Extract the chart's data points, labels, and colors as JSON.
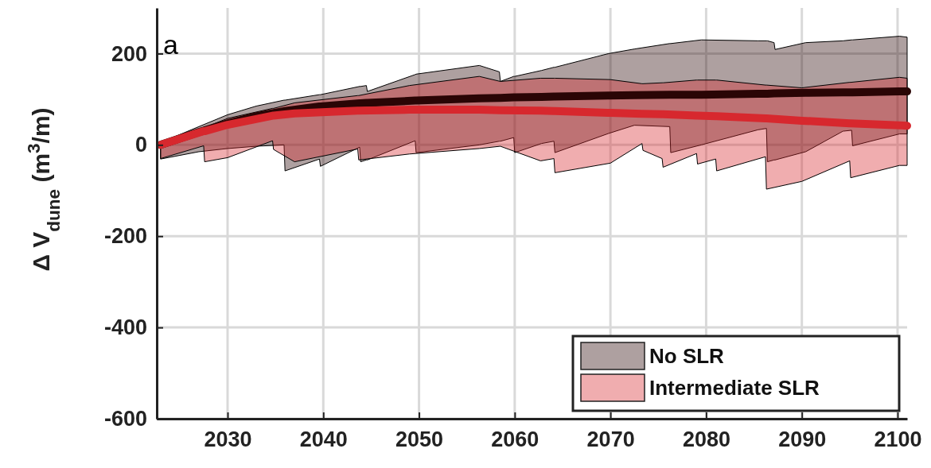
{
  "chart_data": {
    "type": "line",
    "ylabel": "Δ V$_{dune}$ (m$^{3}$/m)",
    "annotations": [
      "a"
    ],
    "xlim": [
      2022.6,
      2101
    ],
    "xticks": [
      2030,
      2040,
      2050,
      2060,
      2070,
      2080,
      2090,
      2100
    ],
    "ylim": [
      -600,
      300
    ],
    "yticks": [
      -600,
      -400,
      -200,
      0,
      200
    ],
    "grid": true,
    "legend": "bottom right",
    "series": [
      {
        "name": "No SLR",
        "color": "#2a0505",
        "x": [
          2023,
          2027,
          2030,
          2033,
          2035.9,
          2036,
          2039.6,
          2039.7,
          2043.8,
          2043.9,
          2044.5,
          2044.6,
          2049.6,
          2049.7,
          2056.3,
          2058.4,
          2058.5,
          2059.9,
          2060,
          2062.8,
          2064.1,
          2064.2,
          2069.8,
          2072.5,
          2076.2,
          2076.3,
          2079.5,
          2085.4,
          2086.3,
          2086.4,
          2087.1,
          2087.2,
          2090.4,
          2094.3,
          2095.2,
          2095.3,
          2100.2,
          2101
        ],
        "values": [
          0,
          28,
          47,
          63,
          74,
          74,
          84,
          84,
          91,
          91,
          92,
          92,
          97,
          97,
          102,
          103,
          103,
          104,
          104,
          105,
          106,
          106,
          108,
          109,
          110,
          110,
          110,
          112,
          112,
          112,
          113,
          113,
          114,
          115,
          115,
          115,
          117,
          117
        ],
        "upper": [
          5,
          40,
          66,
          85,
          98,
          98,
          110,
          110,
          128,
          128,
          130,
          117,
          154,
          155,
          174,
          160,
          139,
          150,
          150,
          163,
          170,
          170,
          200,
          210,
          222,
          222,
          230,
          228,
          228,
          228,
          224,
          209,
          224,
          228,
          230,
          230,
          238,
          236
        ],
        "lower": [
          -31,
          -15,
          -8,
          -3,
          0,
          -57,
          -31,
          -47,
          -5,
          -37,
          -33,
          -33,
          9,
          -17,
          0,
          8,
          8,
          16,
          -17,
          3,
          8,
          -17,
          25,
          43,
          40,
          -17,
          0,
          33,
          36,
          -37,
          -33,
          -33,
          -15,
          30,
          32,
          -2,
          24,
          24
        ]
      },
      {
        "name": "Intermediate SLR",
        "color": "#d7282e",
        "x": [
          2023,
          2027.5,
          2027.6,
          2030,
          2034.7,
          2034.8,
          2037,
          2043.6,
          2043.7,
          2049,
          2056.3,
          2058.5,
          2062.7,
          2064.1,
          2064.2,
          2070,
          2073.3,
          2073.4,
          2075.4,
          2075.5,
          2079,
          2079.1,
          2081,
          2081.1,
          2086.2,
          2086.3,
          2090,
          2095,
          2095.1,
          2100.2,
          2101
        ],
        "values": [
          0,
          30,
          30,
          44,
          64,
          64,
          69,
          75,
          75,
          77,
          77,
          76,
          75,
          74,
          74,
          70,
          68,
          68,
          67,
          67,
          64,
          64,
          63,
          63,
          58,
          58,
          53,
          47,
          47,
          43,
          42
        ],
        "upper": [
          3,
          38,
          38,
          58,
          80,
          80,
          92,
          108,
          108,
          130,
          150,
          139,
          146,
          146,
          146,
          143,
          134,
          134,
          136,
          136,
          142,
          142,
          142,
          142,
          131,
          131,
          125,
          137,
          137,
          148,
          146
        ],
        "lower": [
          -30,
          -2,
          -37,
          -28,
          9,
          -10,
          -37,
          -9,
          -33,
          -20,
          -8,
          -3,
          -35,
          -30,
          -61,
          -40,
          3,
          -12,
          -30,
          -49,
          -19,
          -42,
          -31,
          -57,
          -26,
          -97,
          -80,
          -35,
          -72,
          -45,
          -45
        ]
      }
    ]
  }
}
